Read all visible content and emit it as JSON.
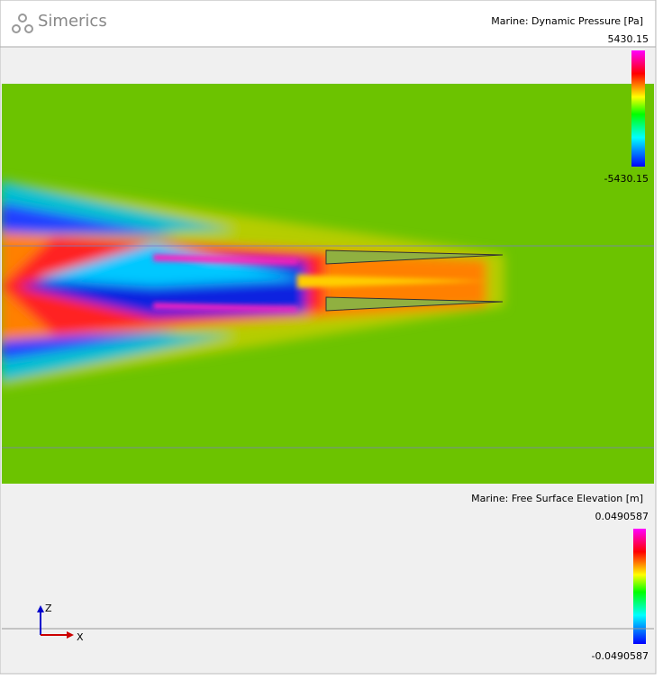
{
  "header": {
    "logo": "Simerics"
  },
  "pressure_legend": {
    "title": "Marine: Dynamic Pressure [Pa]",
    "max": "5430.15",
    "min": "-5430.15"
  },
  "elevation_legend": {
    "title": "Marine: Free Surface Elevation [m]",
    "max": "0.0490587",
    "min": "-0.0490587"
  },
  "axes": {
    "z": "Z",
    "x": "X"
  }
}
